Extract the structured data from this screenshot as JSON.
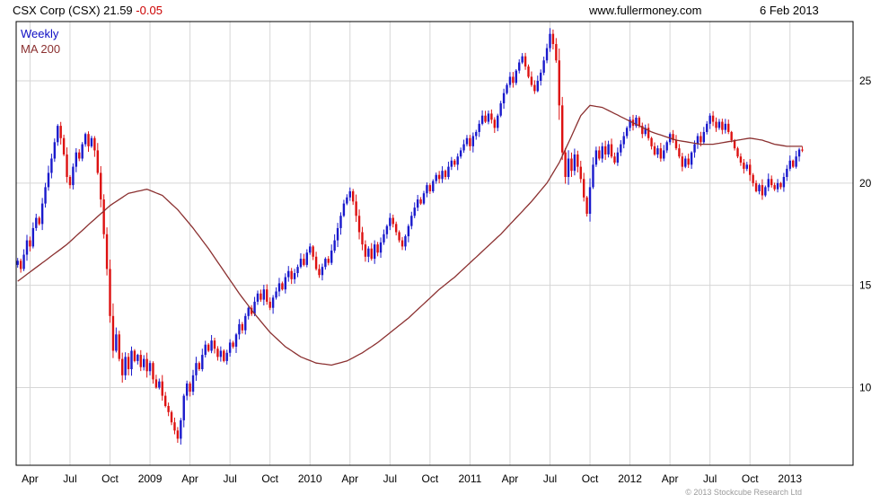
{
  "header": {
    "title": "CSX Corp (CSX) 21.59",
    "change": "-0.05",
    "site": "www.fullermoney.com",
    "date": "6 Feb 2013"
  },
  "legend": {
    "series_label": "Weekly",
    "ma_label": "MA 200"
  },
  "footer": {
    "copyright": "© 2013 Stockcube Research Ltd"
  },
  "colors": {
    "up": "#1a1acc",
    "down": "#dd1111",
    "ma": "#8b3030",
    "grid": "#d6d6d6",
    "border": "#000000",
    "change": "#cc0000"
  },
  "chart_data": {
    "type": "candlestick",
    "title": "CSX Corp (CSX)",
    "interval": "Weekly",
    "overlay": "MA 200",
    "last_price": 21.59,
    "change": -0.05,
    "date": "6 Feb 2013",
    "y_ticks": [
      10,
      15,
      20,
      25
    ],
    "y_range": [
      6.2,
      27.9
    ],
    "total_weeks": 272,
    "x_ticks": [
      {
        "label": "Apr",
        "week": 4
      },
      {
        "label": "Jul",
        "week": 17
      },
      {
        "label": "Oct",
        "week": 30
      },
      {
        "label": "2009",
        "week": 43
      },
      {
        "label": "Apr",
        "week": 56
      },
      {
        "label": "Jul",
        "week": 69
      },
      {
        "label": "Oct",
        "week": 82
      },
      {
        "label": "2010",
        "week": 95
      },
      {
        "label": "Apr",
        "week": 108
      },
      {
        "label": "Jul",
        "week": 121
      },
      {
        "label": "Oct",
        "week": 134
      },
      {
        "label": "2011",
        "week": 147
      },
      {
        "label": "Apr",
        "week": 160
      },
      {
        "label": "Jul",
        "week": 173
      },
      {
        "label": "Oct",
        "week": 186
      },
      {
        "label": "2012",
        "week": 199
      },
      {
        "label": "Apr",
        "week": 212
      },
      {
        "label": "Jul",
        "week": 225
      },
      {
        "label": "Oct",
        "week": 238
      },
      {
        "label": "2013",
        "week": 251
      }
    ],
    "weekly_closes": [
      16.2,
      15.8,
      16.5,
      17.2,
      16.9,
      17.8,
      18.3,
      18.0,
      19.0,
      19.8,
      20.5,
      21.2,
      22.0,
      22.8,
      22.2,
      21.4,
      20.3,
      19.9,
      20.8,
      21.5,
      21.2,
      21.9,
      22.4,
      21.8,
      22.2,
      21.6,
      20.5,
      19.2,
      17.5,
      15.8,
      13.5,
      11.8,
      12.6,
      11.4,
      10.6,
      11.5,
      10.9,
      11.8,
      11.3,
      11.6,
      11.0,
      11.4,
      10.8,
      11.2,
      10.4,
      10.0,
      10.3,
      9.6,
      9.1,
      8.8,
      8.3,
      7.9,
      7.5,
      8.4,
      9.6,
      10.2,
      9.8,
      10.6,
      11.2,
      10.9,
      11.6,
      12.1,
      11.8,
      12.3,
      11.9,
      11.5,
      11.8,
      11.3,
      11.7,
      12.2,
      12.0,
      12.6,
      13.1,
      12.8,
      13.5,
      13.9,
      13.6,
      14.2,
      14.6,
      14.3,
      14.8,
      14.2,
      13.9,
      14.4,
      14.7,
      15.1,
      14.8,
      15.4,
      15.7,
      15.3,
      15.6,
      15.9,
      16.3,
      16.0,
      16.6,
      16.9,
      16.4,
      15.8,
      15.5,
      15.9,
      16.3,
      16.1,
      16.7,
      17.2,
      17.8,
      18.4,
      19.0,
      19.3,
      19.6,
      19.1,
      18.4,
      17.6,
      17.0,
      16.4,
      16.8,
      16.3,
      17.0,
      16.6,
      17.1,
      17.5,
      17.9,
      18.3,
      18.0,
      17.6,
      17.2,
      16.9,
      17.4,
      17.9,
      18.4,
      18.8,
      19.2,
      19.0,
      19.5,
      19.9,
      19.6,
      20.1,
      20.4,
      20.2,
      20.6,
      20.3,
      20.8,
      21.1,
      20.9,
      21.3,
      21.6,
      21.9,
      22.2,
      21.8,
      22.3,
      22.5,
      22.9,
      23.3,
      23.0,
      23.4,
      23.1,
      22.7,
      23.3,
      23.9,
      24.4,
      24.8,
      25.2,
      24.9,
      25.5,
      25.9,
      26.2,
      25.7,
      25.2,
      24.8,
      24.5,
      25.0,
      25.4,
      26.0,
      26.6,
      27.3,
      26.8,
      26.0,
      23.8,
      21.5,
      20.3,
      21.2,
      20.6,
      21.4,
      20.8,
      20.2,
      19.3,
      18.5,
      19.8,
      20.9,
      21.6,
      21.2,
      21.8,
      21.4,
      21.9,
      21.3,
      21.0,
      21.5,
      21.9,
      22.3,
      22.7,
      23.1,
      22.8,
      23.2,
      22.8,
      22.4,
      22.7,
      22.2,
      21.8,
      21.4,
      21.7,
      21.2,
      21.6,
      22.0,
      22.4,
      22.1,
      21.7,
      21.3,
      20.8,
      21.2,
      20.9,
      21.5,
      21.9,
      22.3,
      22.0,
      22.5,
      22.9,
      23.3,
      23.0,
      22.7,
      23.0,
      22.6,
      22.9,
      22.5,
      22.1,
      21.7,
      21.3,
      21.0,
      20.7,
      20.9,
      20.4,
      20.0,
      19.6,
      19.9,
      19.4,
      19.8,
      20.2,
      19.9,
      19.7,
      20.0,
      19.8,
      20.3,
      20.7,
      21.1,
      20.8,
      21.3,
      21.64,
      21.59
    ],
    "ma200": [
      [
        0,
        15.2
      ],
      [
        8,
        16.1
      ],
      [
        16,
        17.0
      ],
      [
        24,
        18.1
      ],
      [
        30,
        18.9
      ],
      [
        36,
        19.5
      ],
      [
        42,
        19.7
      ],
      [
        47,
        19.4
      ],
      [
        52,
        18.7
      ],
      [
        57,
        17.8
      ],
      [
        62,
        16.8
      ],
      [
        67,
        15.7
      ],
      [
        72,
        14.6
      ],
      [
        77,
        13.6
      ],
      [
        82,
        12.7
      ],
      [
        87,
        12.0
      ],
      [
        92,
        11.5
      ],
      [
        97,
        11.2
      ],
      [
        102,
        11.1
      ],
      [
        107,
        11.3
      ],
      [
        112,
        11.7
      ],
      [
        117,
        12.2
      ],
      [
        122,
        12.8
      ],
      [
        127,
        13.4
      ],
      [
        132,
        14.1
      ],
      [
        137,
        14.8
      ],
      [
        142,
        15.4
      ],
      [
        147,
        16.1
      ],
      [
        152,
        16.8
      ],
      [
        157,
        17.5
      ],
      [
        162,
        18.3
      ],
      [
        167,
        19.1
      ],
      [
        172,
        20.0
      ],
      [
        176,
        21.0
      ],
      [
        180,
        22.3
      ],
      [
        183,
        23.3
      ],
      [
        186,
        23.8
      ],
      [
        190,
        23.7
      ],
      [
        194,
        23.4
      ],
      [
        198,
        23.1
      ],
      [
        202,
        22.8
      ],
      [
        206,
        22.5
      ],
      [
        210,
        22.3
      ],
      [
        214,
        22.1
      ],
      [
        218,
        22.0
      ],
      [
        222,
        21.9
      ],
      [
        226,
        21.9
      ],
      [
        230,
        22.0
      ],
      [
        234,
        22.1
      ],
      [
        238,
        22.2
      ],
      [
        242,
        22.1
      ],
      [
        246,
        21.9
      ],
      [
        250,
        21.8
      ],
      [
        255,
        21.8
      ]
    ]
  }
}
